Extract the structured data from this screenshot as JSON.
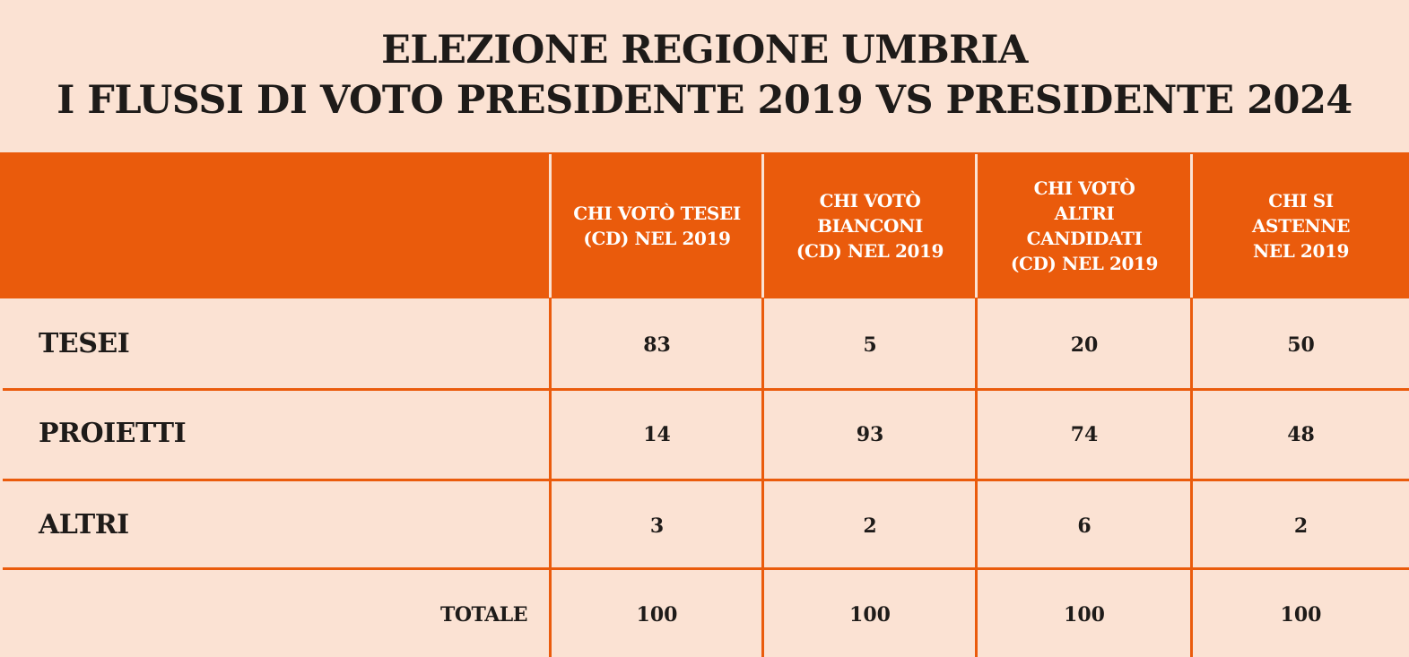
{
  "chart_data": {
    "type": "table",
    "title_lines": [
      "ELEZIONE REGIONE UMBRIA",
      "I FLUSSI DI VOTO PRESIDENTE 2019 VS PRESIDENTE 2024"
    ],
    "columns": [
      [
        "CHI VOTÒ TESEI",
        "(CD) NEL 2019"
      ],
      [
        "CHI VOTÒ",
        "BIANCONI",
        "(CD) NEL 2019"
      ],
      [
        "CHI VOTÒ",
        "ALTRI",
        "CANDIDATI",
        "(CD) NEL 2019"
      ],
      [
        "CHI SI",
        "ASTENNE",
        "NEL 2019"
      ]
    ],
    "rows": [
      {
        "label": "TESEI",
        "values": [
          "83",
          "5",
          "20",
          "50"
        ]
      },
      {
        "label": "PROIETTI",
        "values": [
          "14",
          "93",
          "74",
          "48"
        ]
      },
      {
        "label": "ALTRI",
        "values": [
          "3",
          "2",
          "6",
          "2"
        ]
      }
    ],
    "total": {
      "label": "TOTALE",
      "values": [
        "100",
        "100",
        "100",
        "100"
      ]
    }
  },
  "colors": {
    "background": "#fbe2d3",
    "accent": "#ea5b0c",
    "header_text": "#ffffff",
    "body_text": "#1e1b19"
  }
}
